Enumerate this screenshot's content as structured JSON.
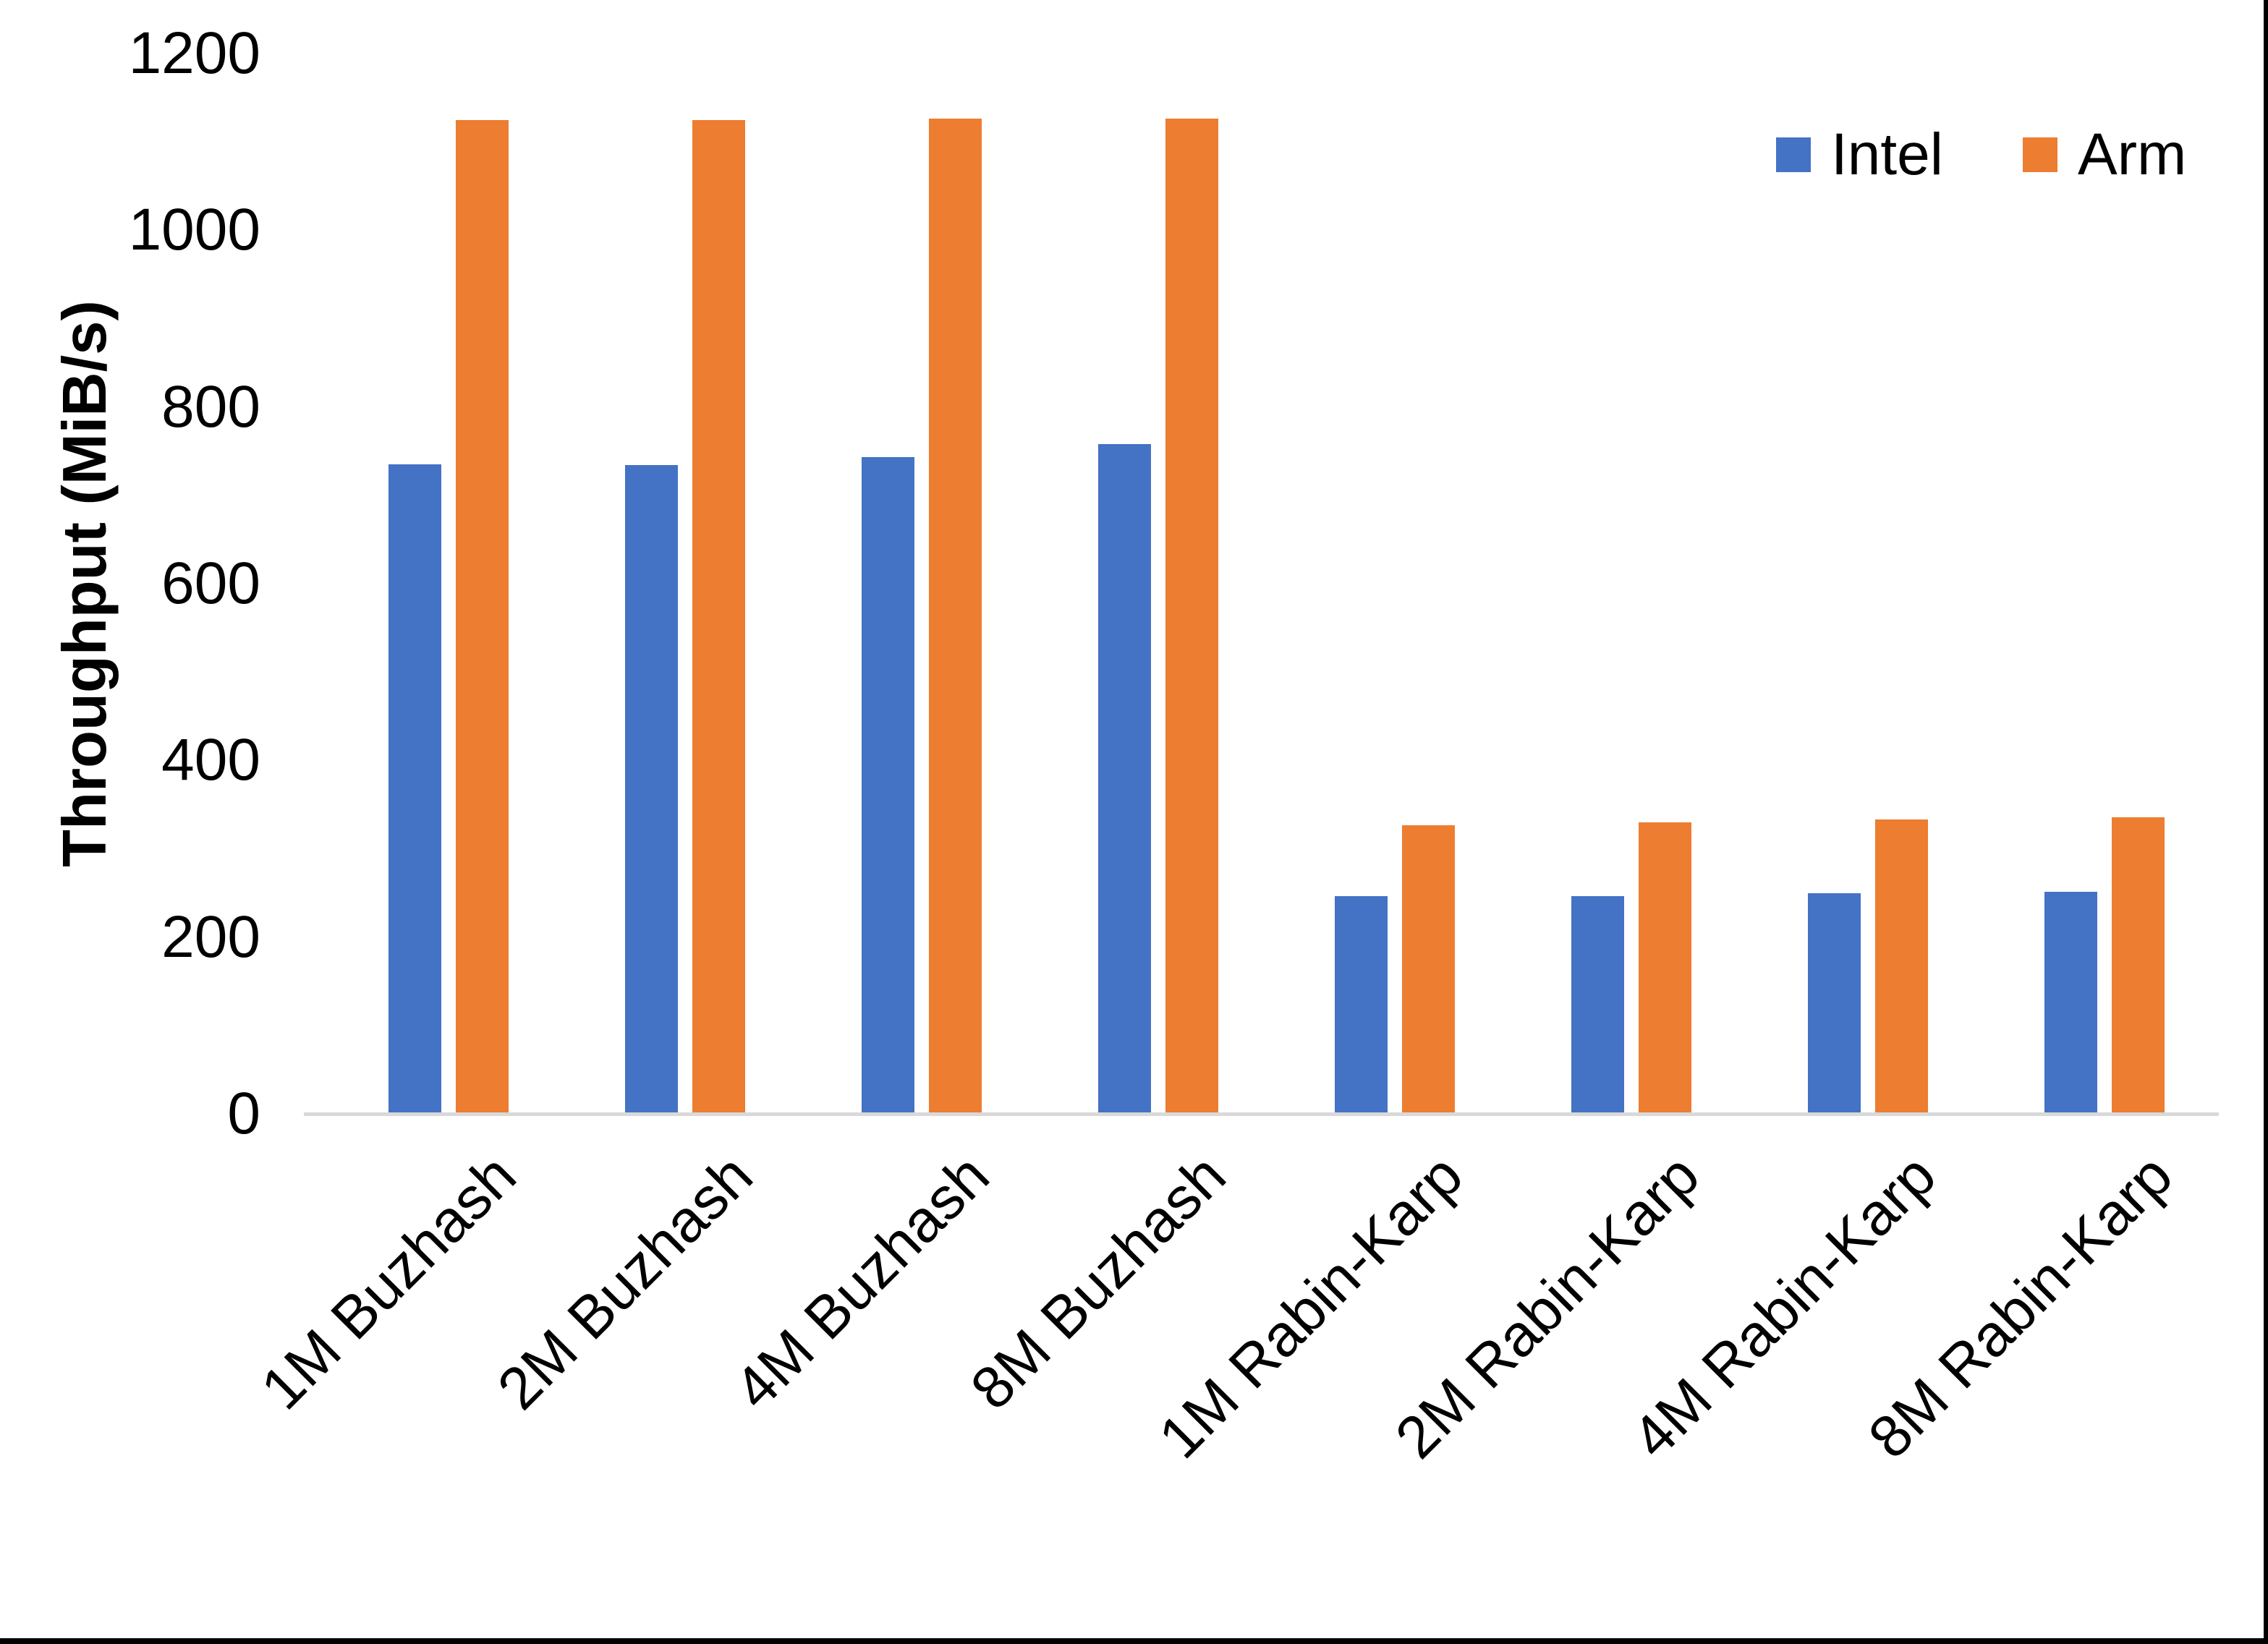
{
  "page": {
    "background": "#ffffff",
    "edge_line_color": "#000000"
  },
  "y_axis": {
    "title": "Throughput (MiB/s)",
    "tick_labels": [
      "0",
      "200",
      "400",
      "600",
      "800",
      "1000",
      "1200"
    ]
  },
  "legend": {
    "items": [
      {
        "label": "Intel",
        "color": "#4472C4"
      },
      {
        "label": "Arm",
        "color": "#ED7D31"
      }
    ]
  },
  "chart_data": {
    "type": "bar",
    "title": "",
    "categories": [
      "1M Buzhash",
      "2M Buzhash",
      "4M Buzhash",
      "8M Buzhash",
      "1M Rabin-Karp",
      "2M Rabin-Karp",
      "4M Rabin-Karp",
      "8M Rabin-Karp"
    ],
    "series": [
      {
        "name": "Intel",
        "color": "#4472C4",
        "values": [
          735,
          734,
          743,
          758,
          246,
          246,
          250,
          251
        ]
      },
      {
        "name": "Arm",
        "color": "#ED7D31",
        "values": [
          1125,
          1125,
          1126,
          1126,
          327,
          330,
          333,
          336
        ]
      }
    ],
    "xlabel": "",
    "ylabel": "Throughput (MiB/s)",
    "ylim": [
      0,
      1200
    ],
    "ytick_step": 200,
    "grid": false,
    "legend_position": "top-right",
    "axis_line_color": "#D9D9D9"
  }
}
